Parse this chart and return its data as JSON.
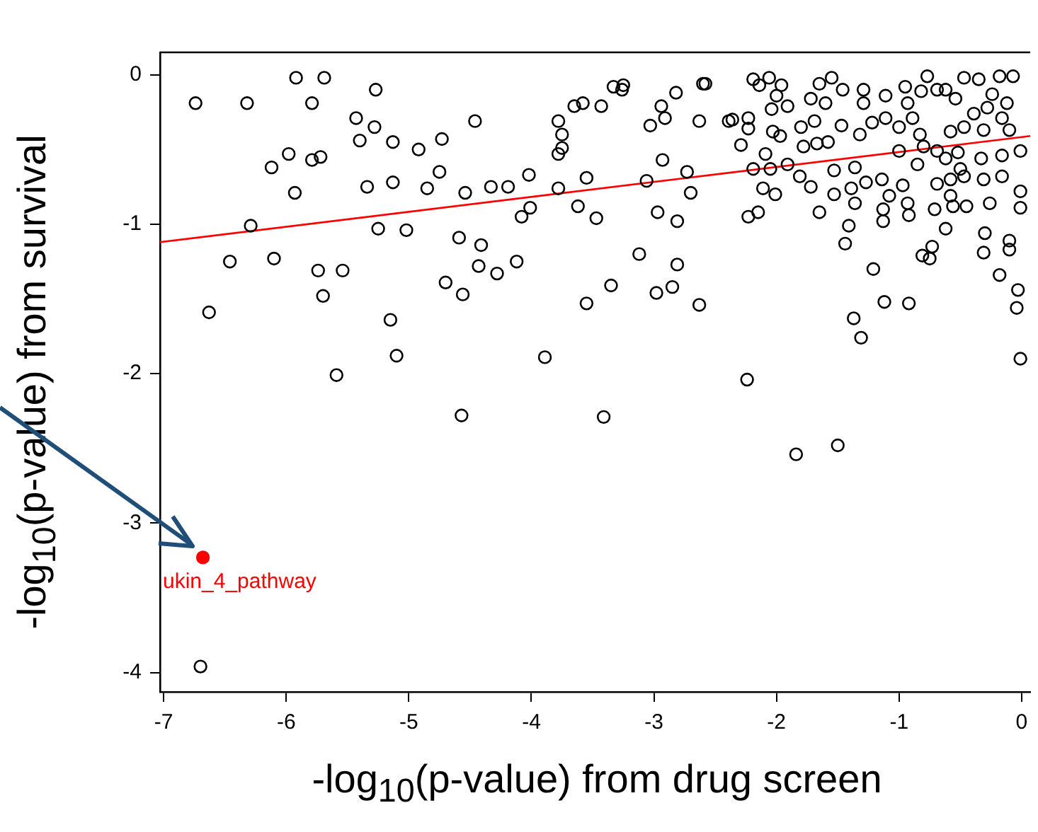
{
  "chart_data": {
    "type": "scatter",
    "xlabel": "-log$_{10}$(p-value) from drug screen",
    "ylabel": "-log$_{10}$(p-value) from survival",
    "xlim": [
      -7.03,
      0.07
    ],
    "ylim": [
      -4.13,
      0.15
    ],
    "xticks": [
      -7,
      -6,
      -5,
      -4,
      -3,
      -2,
      -1,
      0
    ],
    "yticks": [
      -4,
      -3,
      -2,
      -1,
      0
    ],
    "grid": false,
    "legend": false,
    "marker": "circle",
    "annotations": [
      {
        "text": "ukin_4_pathway",
        "x": -6.68,
        "y": -3.23
      }
    ],
    "series": [
      {
        "color": "#000000",
        "x": [
          -6.74,
          -6.32,
          -5.92,
          -5.69,
          -5.79,
          -5.27,
          -5.43,
          -5.28,
          -5.4,
          -5.13,
          -4.92,
          -4.73,
          -5.98,
          -6.12,
          -5.79,
          -5.72,
          -5.93,
          -5.34,
          -5.13,
          -4.85,
          -4.75,
          -6.29,
          -5.25,
          -5.02,
          -6.46,
          -6.1,
          -5.74,
          -5.54,
          -4.7,
          -5.7,
          -6.63,
          -5.15,
          -5.1,
          -5.59,
          -4.46,
          -4.54,
          -4.33,
          -4.19,
          -4.02,
          -3.78,
          -3.75,
          -3.75,
          -3.78,
          -3.65,
          -3.58,
          -3.43,
          -3.33,
          -3.25,
          -3.26,
          -3.78,
          -3.55,
          -4.01,
          -4.08,
          -3.62,
          -3.47,
          -4.59,
          -4.41,
          -4.43,
          -4.28,
          -4.12,
          -4.56,
          -3.55,
          -3.35,
          -3.89,
          -4.57,
          -3.41,
          -3.03,
          -2.94,
          -2.91,
          -2.82,
          -2.6,
          -2.63,
          -2.39,
          -2.93,
          -2.73,
          -3.06,
          -2.7,
          -2.97,
          -2.81,
          -3.12,
          -2.81,
          -2.98,
          -2.85,
          -2.63,
          -2.58,
          -2.19,
          -2.06,
          -2.14,
          -1.96,
          -2.0,
          -1.91,
          -2.04,
          -2.36,
          -2.23,
          -2.23,
          -2.29,
          -2.03,
          -1.97,
          -2.09,
          -2.19,
          -2.05,
          -1.91,
          -2.11,
          -2.01,
          -2.23,
          -2.15,
          -1.65,
          -1.72,
          -1.65,
          -1.55,
          -1.6,
          -1.46,
          -1.29,
          -1.29,
          -1.47,
          -1.69,
          -1.8,
          -1.78,
          -1.67,
          -1.58,
          -1.53,
          -1.81,
          -1.72,
          -1.53,
          -1.36,
          -1.32,
          -1.39,
          -1.27,
          -1.36,
          -1.41,
          -1.44,
          -1.14,
          -1.08,
          -0.97,
          -1.13,
          -1.13,
          -0.93,
          -0.92,
          -1.11,
          -0.95,
          -0.93,
          -0.77,
          -0.69,
          -0.82,
          -1.22,
          -1.11,
          -1.0,
          -0.89,
          -0.83,
          -0.8,
          -0.54,
          -0.62,
          -0.47,
          -0.35,
          -0.18,
          -0.07,
          -0.24,
          -0.12,
          -0.28,
          -0.16,
          -0.39,
          -0.47,
          -0.58,
          -0.31,
          -0.1,
          -0.52,
          -0.62,
          -0.33,
          -0.16,
          -0.01,
          -0.58,
          -0.47,
          -0.31,
          -0.16,
          -0.01,
          -0.69,
          -0.58,
          -0.71,
          -0.56,
          -0.45,
          -0.26,
          -0.01,
          -0.62,
          -0.3,
          -0.1,
          -0.31,
          -0.1,
          -0.73,
          -0.75,
          -0.81,
          -1.21,
          -0.18,
          -0.03,
          -0.04,
          -1.12,
          -0.92,
          -1.37,
          -1.31,
          -0.01,
          -2.24,
          -1.0,
          -0.85,
          -0.69,
          -0.5,
          -1.84,
          -1.5,
          -6.7
        ],
        "values": [
          -0.19,
          -0.19,
          -0.02,
          -0.02,
          -0.19,
          -0.1,
          -0.29,
          -0.35,
          -0.44,
          -0.45,
          -0.5,
          -0.43,
          -0.53,
          -0.62,
          -0.57,
          -0.55,
          -0.79,
          -0.75,
          -0.72,
          -0.76,
          -0.65,
          -1.01,
          -1.03,
          -1.04,
          -1.25,
          -1.23,
          -1.31,
          -1.31,
          -1.39,
          -1.48,
          -1.59,
          -1.64,
          -1.88,
          -2.01,
          -0.31,
          -0.79,
          -0.75,
          -0.75,
          -0.67,
          -0.31,
          -0.4,
          -0.49,
          -0.53,
          -0.21,
          -0.19,
          -0.21,
          -0.08,
          -0.07,
          -0.1,
          -0.76,
          -0.69,
          -0.89,
          -0.95,
          -0.88,
          -0.96,
          -1.09,
          -1.14,
          -1.28,
          -1.33,
          -1.25,
          -1.47,
          -1.53,
          -1.41,
          -1.89,
          -2.28,
          -2.29,
          -0.34,
          -0.21,
          -0.29,
          -0.12,
          -0.06,
          -0.31,
          -0.31,
          -0.57,
          -0.65,
          -0.71,
          -0.79,
          -0.92,
          -0.98,
          -1.2,
          -1.27,
          -1.46,
          -1.42,
          -1.54,
          -0.06,
          -0.03,
          -0.02,
          -0.07,
          -0.07,
          -0.14,
          -0.21,
          -0.23,
          -0.3,
          -0.29,
          -0.36,
          -0.47,
          -0.38,
          -0.41,
          -0.53,
          -0.63,
          -0.63,
          -0.6,
          -0.76,
          -0.8,
          -0.95,
          -0.92,
          -0.92,
          -0.16,
          -0.06,
          -0.02,
          -0.19,
          -0.1,
          -0.1,
          -0.19,
          -0.34,
          -0.31,
          -0.35,
          -0.48,
          -0.46,
          -0.45,
          -0.64,
          -0.68,
          -0.75,
          -0.8,
          -0.62,
          -0.4,
          -0.76,
          -0.72,
          -0.86,
          -1.01,
          -1.13,
          -0.7,
          -0.81,
          -0.74,
          -0.9,
          -0.98,
          -0.86,
          -0.94,
          -0.14,
          -0.08,
          -0.19,
          -0.01,
          -0.1,
          -0.11,
          -0.32,
          -0.29,
          -0.35,
          -0.29,
          -0.4,
          -0.48,
          -0.16,
          -0.1,
          -0.02,
          -0.03,
          -0.01,
          -0.01,
          -0.13,
          -0.19,
          -0.22,
          -0.29,
          -0.26,
          -0.35,
          -0.38,
          -0.37,
          -0.37,
          -0.52,
          -0.56,
          -0.56,
          -0.54,
          -0.51,
          -0.7,
          -0.68,
          -0.7,
          -0.68,
          -0.78,
          -0.73,
          -0.81,
          -0.9,
          -0.88,
          -0.88,
          -0.86,
          -0.89,
          -1.03,
          -1.06,
          -1.11,
          -1.19,
          -1.17,
          -1.15,
          -1.23,
          -1.21,
          -1.3,
          -1.34,
          -1.44,
          -1.56,
          -1.52,
          -1.53,
          -1.63,
          -1.76,
          -1.9,
          -2.04,
          -0.51,
          -0.6,
          -0.51,
          -0.63,
          -2.54,
          -2.48,
          -3.96
        ]
      },
      {
        "color": "#ff0000",
        "x": [
          -6.68
        ],
        "values": [
          -3.23
        ]
      },
      {
        "type": "line",
        "color": "#ff0000",
        "marker": "none",
        "x": [
          -7.03,
          0.07
        ],
        "values": [
          -1.12,
          -0.41
        ]
      }
    ]
  }
}
